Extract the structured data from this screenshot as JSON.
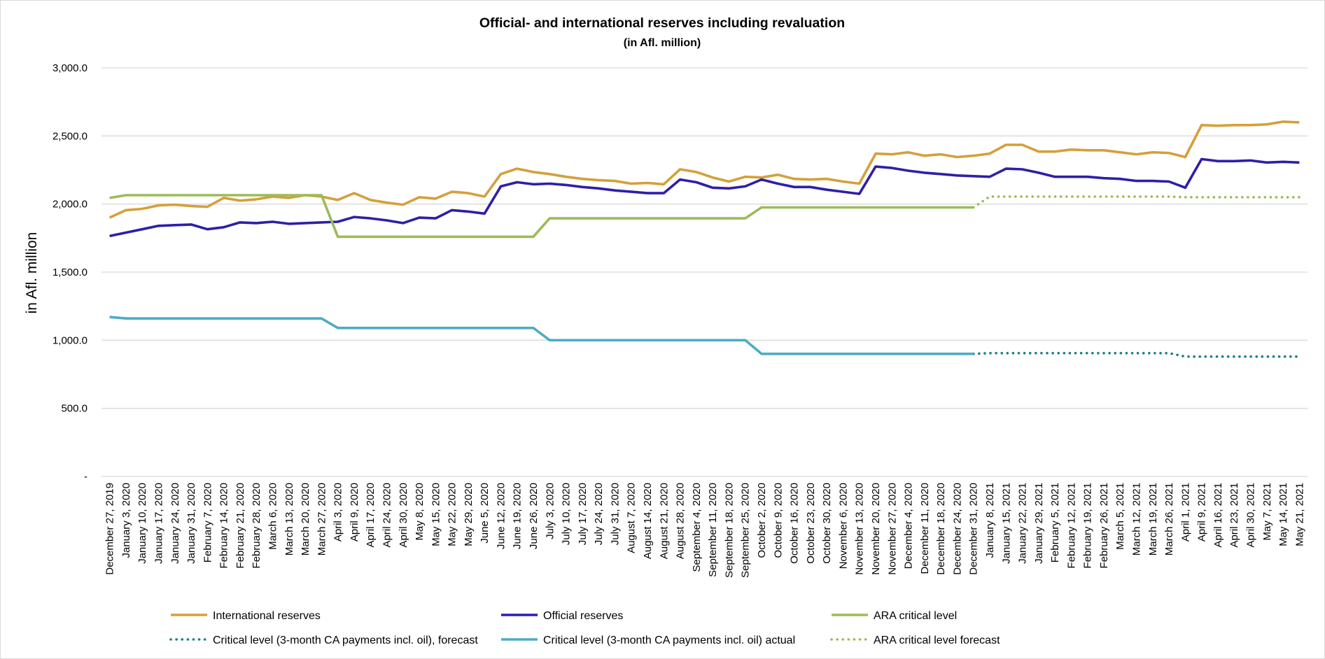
{
  "chart_data": {
    "type": "line",
    "title": "Official- and international reserves including revaluation",
    "subtitle": "(in Afl. million)",
    "ylabel": "in Afl. million",
    "ylim": [
      0,
      3000
    ],
    "y_ticks": [
      {
        "value": 3000,
        "label": "3,000.0"
      },
      {
        "value": 2500,
        "label": "2,500.0"
      },
      {
        "value": 2000,
        "label": "2,000.0"
      },
      {
        "value": 1500,
        "label": "1,500.0"
      },
      {
        "value": 1000,
        "label": "1,000.0"
      },
      {
        "value": 500,
        "label": "500.0"
      },
      {
        "value": 0,
        "label": "-"
      }
    ],
    "grid": "horizontal",
    "legend_position": "bottom",
    "categories": [
      "December 27, 2019",
      "January 3, 2020",
      "January 10, 2020",
      "January 17, 2020",
      "January 24, 2020",
      "January 31, 2020",
      "February 7, 2020",
      "February 14, 2020",
      "February 21, 2020",
      "February 28, 2020",
      "March 6, 2020",
      "March 13, 2020",
      "March 20, 2020",
      "March 27, 2020",
      "April 3, 2020",
      "April 9, 2020",
      "April 17, 2020",
      "April 24, 2020",
      "April 30, 2020",
      "May 8, 2020",
      "May 15, 2020",
      "May 22, 2020",
      "May 29, 2020",
      "June 5, 2020",
      "June 12, 2020",
      "June 19, 2020",
      "June 26, 2020",
      "July 3, 2020",
      "July 10, 2020",
      "July 17, 2020",
      "July 24, 2020",
      "July 31, 2020",
      "August 7, 2020",
      "August 14, 2020",
      "August 21, 2020",
      "August 28, 2020",
      "September 4, 2020",
      "September 11, 2020",
      "September 18, 2020",
      "September 25, 2020",
      "October 2, 2020",
      "October 9, 2020",
      "October 16, 2020",
      "October 23, 2020",
      "October 30, 2020",
      "November 6, 2020",
      "November 13, 2020",
      "November 20, 2020",
      "November 27, 2020",
      "December 4, 2020",
      "December 11, 2020",
      "December 18, 2020",
      "December 24, 2020",
      "December 31, 2020",
      "January 8, 2021",
      "January 15, 2021",
      "January 22, 2021",
      "January 29, 2021",
      "February 5, 2021",
      "February 12, 2021",
      "February 19, 2021",
      "February 26, 2021",
      "March 5, 2021",
      "March 12, 2021",
      "March 19, 2021",
      "March 26, 2021",
      "April 1, 2021",
      "April 9, 2021",
      "April 16, 2021",
      "April 23, 2021",
      "April 30, 2021",
      "May 7, 2021",
      "May 14, 2021",
      "May 21, 2021"
    ],
    "series": [
      {
        "name": "International reserves",
        "color": "#D4A03A",
        "style": "solid",
        "values": [
          1900,
          1955,
          1965,
          1990,
          1995,
          1985,
          1980,
          2045,
          2025,
          2035,
          2055,
          2045,
          2065,
          2055,
          2030,
          2080,
          2030,
          2010,
          1995,
          2050,
          2040,
          2090,
          2080,
          2055,
          2220,
          2260,
          2235,
          2220,
          2200,
          2185,
          2175,
          2170,
          2150,
          2155,
          2145,
          2255,
          2235,
          2195,
          2165,
          2200,
          2195,
          2215,
          2185,
          2180,
          2185,
          2165,
          2150,
          2370,
          2365,
          2380,
          2355,
          2365,
          2345,
          2355,
          2370,
          2435,
          2435,
          2385,
          2385,
          2400,
          2395,
          2395,
          2380,
          2365,
          2380,
          2375,
          2345,
          2580,
          2575,
          2580,
          2580,
          2585,
          2605,
          2600
        ]
      },
      {
        "name": "Official reserves",
        "color": "#2E1FA8",
        "style": "solid",
        "values": [
          1765,
          1790,
          1815,
          1840,
          1845,
          1850,
          1815,
          1830,
          1865,
          1860,
          1870,
          1855,
          1860,
          1865,
          1870,
          1905,
          1895,
          1880,
          1860,
          1900,
          1895,
          1955,
          1945,
          1930,
          2130,
          2160,
          2145,
          2150,
          2140,
          2125,
          2115,
          2100,
          2090,
          2080,
          2080,
          2180,
          2160,
          2120,
          2115,
          2130,
          2180,
          2150,
          2125,
          2125,
          2105,
          2090,
          2075,
          2275,
          2265,
          2245,
          2230,
          2220,
          2210,
          2205,
          2200,
          2260,
          2255,
          2230,
          2200,
          2200,
          2200,
          2190,
          2185,
          2170,
          2170,
          2165,
          2120,
          2330,
          2315,
          2315,
          2320,
          2305,
          2310,
          2305
        ]
      },
      {
        "name": "ARA critical level",
        "color": "#9BBB59",
        "style": "solid",
        "values": [
          2045,
          2065,
          2065,
          2065,
          2065,
          2065,
          2065,
          2065,
          2065,
          2065,
          2065,
          2065,
          2065,
          2065,
          1760,
          1760,
          1760,
          1760,
          1760,
          1760,
          1760,
          1760,
          1760,
          1760,
          1760,
          1760,
          1760,
          1895,
          1895,
          1895,
          1895,
          1895,
          1895,
          1895,
          1895,
          1895,
          1895,
          1895,
          1895,
          1895,
          1975,
          1975,
          1975,
          1975,
          1975,
          1975,
          1975,
          1975,
          1975,
          1975,
          1975,
          1975,
          1975,
          1975,
          null,
          null,
          null,
          null,
          null,
          null,
          null,
          null,
          null,
          null,
          null,
          null,
          null,
          null,
          null,
          null,
          null,
          null,
          null,
          null
        ]
      },
      {
        "name": "Critical level (3-month CA payments incl. oil), forecast",
        "color": "#1F7F86",
        "style": "dotted",
        "values": [
          null,
          null,
          null,
          null,
          null,
          null,
          null,
          null,
          null,
          null,
          null,
          null,
          null,
          null,
          null,
          null,
          null,
          null,
          null,
          null,
          null,
          null,
          null,
          null,
          null,
          null,
          null,
          null,
          null,
          null,
          null,
          null,
          null,
          null,
          null,
          null,
          null,
          null,
          null,
          null,
          null,
          null,
          null,
          null,
          null,
          null,
          null,
          null,
          null,
          null,
          null,
          null,
          null,
          900,
          905,
          905,
          905,
          905,
          905,
          905,
          905,
          905,
          905,
          905,
          905,
          905,
          880,
          880,
          880,
          880,
          880,
          880,
          880,
          880
        ]
      },
      {
        "name": "Critical level (3-month CA payments incl. oil) actual",
        "color": "#4BACC6",
        "style": "solid",
        "values": [
          1170,
          1160,
          1160,
          1160,
          1160,
          1160,
          1160,
          1160,
          1160,
          1160,
          1160,
          1160,
          1160,
          1160,
          1090,
          1090,
          1090,
          1090,
          1090,
          1090,
          1090,
          1090,
          1090,
          1090,
          1090,
          1090,
          1090,
          1000,
          1000,
          1000,
          1000,
          1000,
          1000,
          1000,
          1000,
          1000,
          1000,
          1000,
          1000,
          1000,
          900,
          900,
          900,
          900,
          900,
          900,
          900,
          900,
          900,
          900,
          900,
          900,
          900,
          900,
          null,
          null,
          null,
          null,
          null,
          null,
          null,
          null,
          null,
          null,
          null,
          null,
          null,
          null,
          null,
          null,
          null,
          null,
          null,
          null
        ]
      },
      {
        "name": "ARA critical level forecast",
        "color": "#9BBB59",
        "style": "dotted",
        "values": [
          null,
          null,
          null,
          null,
          null,
          null,
          null,
          null,
          null,
          null,
          null,
          null,
          null,
          null,
          null,
          null,
          null,
          null,
          null,
          null,
          null,
          null,
          null,
          null,
          null,
          null,
          null,
          null,
          null,
          null,
          null,
          null,
          null,
          null,
          null,
          null,
          null,
          null,
          null,
          null,
          null,
          null,
          null,
          null,
          null,
          null,
          null,
          null,
          null,
          null,
          null,
          null,
          null,
          1975,
          2055,
          2055,
          2055,
          2055,
          2055,
          2055,
          2055,
          2055,
          2055,
          2055,
          2055,
          2055,
          2050,
          2050,
          2050,
          2050,
          2050,
          2050,
          2050,
          2050
        ]
      }
    ],
    "legend_order": [
      0,
      1,
      2,
      3,
      4,
      5
    ]
  }
}
